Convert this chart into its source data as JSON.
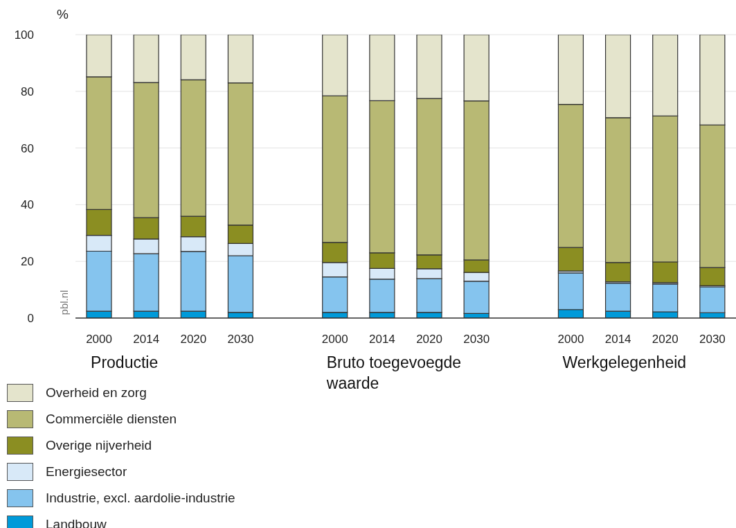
{
  "chart_data": {
    "type": "bar",
    "stacked": true,
    "ylabel": "%",
    "categories": [
      "2000",
      "2014",
      "2020",
      "2030",
      null,
      "2000",
      "2014",
      "2020",
      "2030",
      null,
      "2000",
      "2014",
      "2020",
      "2030"
    ],
    "series": [
      {
        "name": "Landbouw",
        "color": "#009ad9",
        "values": [
          2.4,
          2.4,
          2.4,
          2.0,
          null,
          2.0,
          2.0,
          2.0,
          1.6,
          null,
          3.0,
          2.4,
          2.2,
          1.9
        ]
      },
      {
        "name": "Industrie, excl. aardolie-industrie",
        "color": "#85c4ee",
        "values": [
          21.2,
          20.3,
          21.1,
          20.0,
          null,
          12.5,
          11.7,
          11.9,
          11.4,
          null,
          12.9,
          9.9,
          9.8,
          9.1
        ]
      },
      {
        "name": "Energiesector",
        "color": "#d8e9f8",
        "values": [
          5.6,
          5.2,
          5.2,
          4.3,
          null,
          5.1,
          3.8,
          3.5,
          3.1,
          null,
          0.7,
          0.5,
          0.5,
          0.4
        ]
      },
      {
        "name": "Overige nijverheid",
        "color": "#8b8e22",
        "values": [
          9.1,
          7.5,
          7.2,
          6.5,
          null,
          7.1,
          5.5,
          4.9,
          4.4,
          null,
          8.3,
          6.8,
          7.3,
          6.4
        ]
      },
      {
        "name": "Commerciële diensten",
        "color": "#b8b974",
        "values": [
          46.8,
          47.7,
          48.2,
          50.2,
          null,
          51.7,
          53.7,
          55.2,
          56.1,
          null,
          50.5,
          51.1,
          51.5,
          50.3
        ]
      },
      {
        "name": "Overheid en zorg",
        "color": "#e4e4cc",
        "values": [
          14.9,
          16.9,
          15.9,
          17.0,
          null,
          21.6,
          23.3,
          22.5,
          23.4,
          null,
          24.6,
          29.3,
          28.7,
          31.9
        ]
      }
    ],
    "ylim": [
      0,
      100
    ],
    "yticks": [
      0,
      20,
      40,
      60,
      80,
      100
    ],
    "grid": "y",
    "legend": "bottom left",
    "annotations": [
      "Productie",
      "Bruto toegevoegde waarde",
      "Werkgelegenheid",
      "pbl.nl"
    ]
  }
}
